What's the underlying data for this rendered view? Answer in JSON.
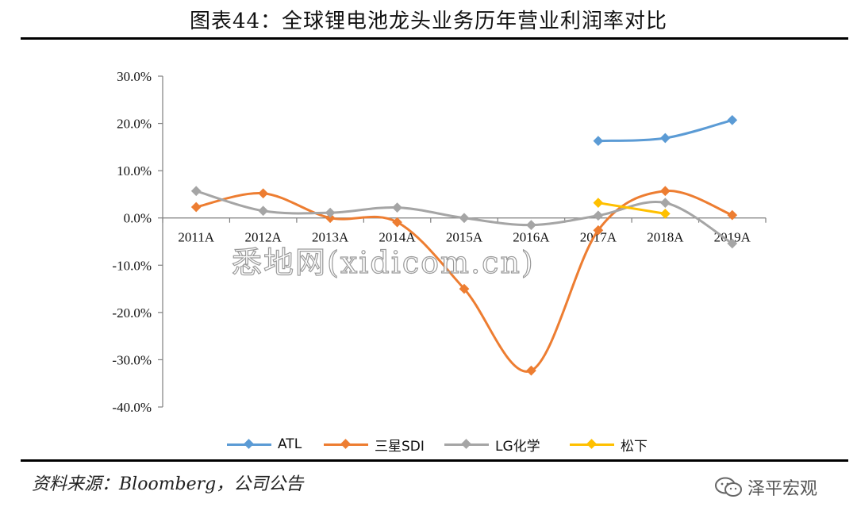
{
  "title": "图表44：全球锂电池龙头业务历年营业利润率对比",
  "source": "资料来源：Bloomberg，公司公告",
  "watermark": "悉地网(xidicom.cn)",
  "brand": {
    "name": "泽平宏观",
    "icon": "wechat-icon"
  },
  "chart_data": {
    "type": "line",
    "smooth": true,
    "categories": [
      "2011A",
      "2012A",
      "2013A",
      "2014A",
      "2015A",
      "2016A",
      "2017A",
      "2018A",
      "2019A"
    ],
    "y_ticks": [
      "30.0%",
      "20.0%",
      "10.0%",
      "0.0%",
      "-10.0%",
      "-20.0%",
      "-30.0%",
      "-40.0%"
    ],
    "ylim": [
      -40,
      30
    ],
    "y_unit": "%",
    "legend_position": "bottom",
    "grid": false,
    "series": [
      {
        "name": "ATL",
        "color": "#5b9bd5",
        "values": [
          null,
          null,
          null,
          null,
          null,
          null,
          16.3,
          16.9,
          20.7
        ]
      },
      {
        "name": "三星SDI",
        "color": "#ed7d31",
        "values": [
          2.3,
          5.2,
          0.0,
          -0.9,
          -15.0,
          -32.3,
          -2.6,
          5.7,
          0.6
        ]
      },
      {
        "name": "LG化学",
        "color": "#a5a5a5",
        "values": [
          5.7,
          1.5,
          1.1,
          2.2,
          0.0,
          -1.5,
          0.5,
          3.2,
          -5.4
        ]
      },
      {
        "name": "松下",
        "color": "#ffc000",
        "values": [
          null,
          null,
          null,
          null,
          null,
          null,
          3.2,
          0.9,
          null
        ]
      }
    ]
  }
}
